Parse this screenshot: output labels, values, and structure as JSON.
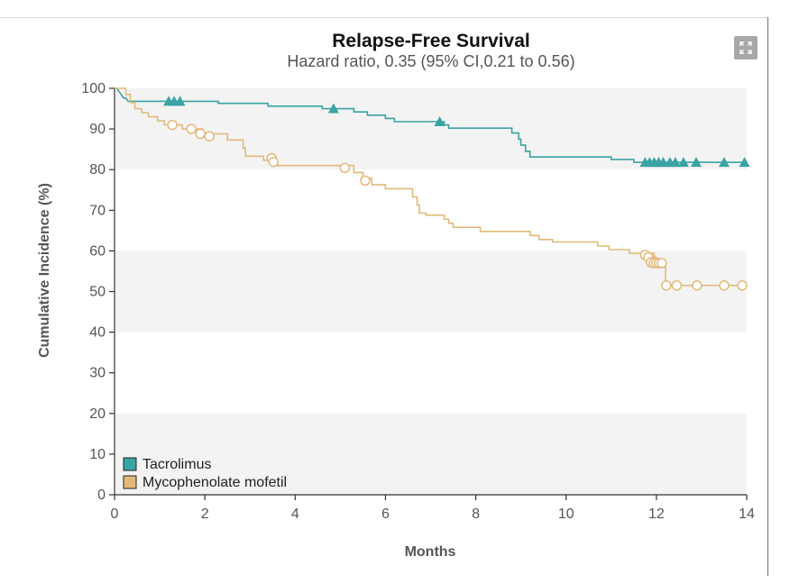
{
  "chart_data": {
    "type": "line",
    "subtype": "kaplan-meier step",
    "title": "Relapse-Free Survival",
    "subtitle": "Hazard ratio, 0.35 (95% CI,0.21 to 0.56)",
    "xlabel": "Months",
    "ylabel": "Cumulative Incidence (%)",
    "xlim": [
      0,
      14
    ],
    "ylim": [
      0,
      100
    ],
    "xticks": [
      0,
      2,
      4,
      6,
      8,
      10,
      12,
      14
    ],
    "yticks": [
      0,
      10,
      20,
      30,
      40,
      50,
      60,
      70,
      80,
      90,
      100
    ],
    "legend_position": "bottom-left",
    "series": [
      {
        "name": "Tacrolimus",
        "color": "#3aa3a3",
        "censor_marker": "filled-triangle",
        "steps": [
          [
            0,
            100
          ],
          [
            0.05,
            100
          ],
          [
            0.1,
            99.2
          ],
          [
            0.15,
            98.4
          ],
          [
            0.2,
            97.6
          ],
          [
            0.25,
            97.6
          ],
          [
            0.3,
            96.8
          ],
          [
            2.3,
            96.8
          ],
          [
            2.3,
            96.3
          ],
          [
            3.4,
            96.3
          ],
          [
            3.4,
            95.6
          ],
          [
            4.6,
            95.6
          ],
          [
            4.6,
            95.0
          ],
          [
            5.3,
            95.0
          ],
          [
            5.3,
            94.2
          ],
          [
            5.6,
            94.2
          ],
          [
            5.6,
            93.4
          ],
          [
            6.0,
            93.4
          ],
          [
            6.0,
            92.6
          ],
          [
            6.2,
            92.6
          ],
          [
            6.2,
            91.8
          ],
          [
            7.3,
            91.8
          ],
          [
            7.3,
            91.0
          ],
          [
            7.4,
            91.0
          ],
          [
            7.4,
            90.2
          ],
          [
            8.8,
            90.2
          ],
          [
            8.8,
            89.0
          ],
          [
            8.95,
            89.0
          ],
          [
            8.95,
            87.5
          ],
          [
            9.0,
            87.5
          ],
          [
            9.0,
            86.0
          ],
          [
            9.1,
            86.0
          ],
          [
            9.1,
            84.5
          ],
          [
            9.2,
            84.5
          ],
          [
            9.2,
            83.1
          ],
          [
            11.0,
            83.1
          ],
          [
            11.0,
            82.5
          ],
          [
            11.5,
            82.5
          ],
          [
            11.5,
            81.8
          ],
          [
            14.0,
            81.8
          ]
        ],
        "censored": [
          [
            1.2,
            96.8
          ],
          [
            1.32,
            96.8
          ],
          [
            1.45,
            96.8
          ],
          [
            4.85,
            95.0
          ],
          [
            7.2,
            91.8
          ],
          [
            11.75,
            81.8
          ],
          [
            11.85,
            81.8
          ],
          [
            11.95,
            81.8
          ],
          [
            12.05,
            81.8
          ],
          [
            12.15,
            81.8
          ],
          [
            12.3,
            81.8
          ],
          [
            12.42,
            81.8
          ],
          [
            12.6,
            81.8
          ],
          [
            12.88,
            81.8
          ],
          [
            13.5,
            81.8
          ],
          [
            13.95,
            81.8
          ]
        ]
      },
      {
        "name": "Mycophenolate mofetil",
        "color": "#e3b97a",
        "censor_marker": "open-circle",
        "steps": [
          [
            0,
            100
          ],
          [
            0.25,
            100
          ],
          [
            0.25,
            98.5
          ],
          [
            0.35,
            98.5
          ],
          [
            0.35,
            96.5
          ],
          [
            0.45,
            96.5
          ],
          [
            0.45,
            95.0
          ],
          [
            0.6,
            95.0
          ],
          [
            0.6,
            94.0
          ],
          [
            0.75,
            94.0
          ],
          [
            0.75,
            93.0
          ],
          [
            0.95,
            93.0
          ],
          [
            0.95,
            92.0
          ],
          [
            1.1,
            92.0
          ],
          [
            1.1,
            91.0
          ],
          [
            1.5,
            91.0
          ],
          [
            1.5,
            90.0
          ],
          [
            1.95,
            90.0
          ],
          [
            1.95,
            88.8
          ],
          [
            2.5,
            88.8
          ],
          [
            2.5,
            87.3
          ],
          [
            2.85,
            87.3
          ],
          [
            2.85,
            85.3
          ],
          [
            2.9,
            85.3
          ],
          [
            2.9,
            83.3
          ],
          [
            3.3,
            83.3
          ],
          [
            3.3,
            82.3
          ],
          [
            3.6,
            82.3
          ],
          [
            3.6,
            81.0
          ],
          [
            5.3,
            81.0
          ],
          [
            5.3,
            79.3
          ],
          [
            5.5,
            79.3
          ],
          [
            5.5,
            77.8
          ],
          [
            5.7,
            77.8
          ],
          [
            5.7,
            76.3
          ],
          [
            6.0,
            76.3
          ],
          [
            6.0,
            75.3
          ],
          [
            6.6,
            75.3
          ],
          [
            6.6,
            73.3
          ],
          [
            6.7,
            73.3
          ],
          [
            6.7,
            71.3
          ],
          [
            6.75,
            71.3
          ],
          [
            6.75,
            69.3
          ],
          [
            6.9,
            69.3
          ],
          [
            6.9,
            68.8
          ],
          [
            7.3,
            68.8
          ],
          [
            7.3,
            67.8
          ],
          [
            7.4,
            67.8
          ],
          [
            7.4,
            66.8
          ],
          [
            7.5,
            66.8
          ],
          [
            7.5,
            65.8
          ],
          [
            8.1,
            65.8
          ],
          [
            8.1,
            64.8
          ],
          [
            9.2,
            64.8
          ],
          [
            9.2,
            63.8
          ],
          [
            9.4,
            63.8
          ],
          [
            9.4,
            62.8
          ],
          [
            9.7,
            62.8
          ],
          [
            9.7,
            62.2
          ],
          [
            10.7,
            62.2
          ],
          [
            10.7,
            61.2
          ],
          [
            10.95,
            61.2
          ],
          [
            10.95,
            60.3
          ],
          [
            11.4,
            60.3
          ],
          [
            11.4,
            59.4
          ],
          [
            11.95,
            59.4
          ],
          [
            11.95,
            58.4
          ],
          [
            12.0,
            58.4
          ],
          [
            12.0,
            57.0
          ],
          [
            12.2,
            57.0
          ],
          [
            12.2,
            51.5
          ],
          [
            14.0,
            51.5
          ]
        ],
        "censored": [
          [
            1.28,
            91.0
          ],
          [
            1.7,
            90.0
          ],
          [
            1.9,
            88.8
          ],
          [
            2.1,
            88.2
          ],
          [
            3.48,
            82.8
          ],
          [
            3.52,
            81.9
          ],
          [
            5.1,
            80.4
          ],
          [
            5.55,
            77.3
          ],
          [
            11.75,
            59.0
          ],
          [
            11.82,
            58.4
          ],
          [
            11.88,
            57.2
          ],
          [
            11.94,
            57.0
          ],
          [
            12.0,
            57.0
          ],
          [
            12.06,
            57.0
          ],
          [
            12.12,
            57.0
          ],
          [
            12.22,
            51.5
          ],
          [
            12.45,
            51.5
          ],
          [
            12.9,
            51.5
          ],
          [
            13.5,
            51.5
          ],
          [
            13.9,
            51.5
          ]
        ]
      }
    ]
  },
  "toolbar": {
    "expand_icon": "expand-icon"
  }
}
